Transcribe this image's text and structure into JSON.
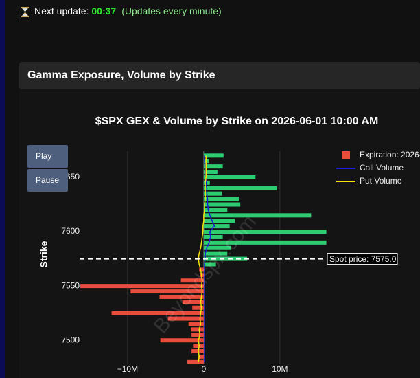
{
  "header": {
    "label": "Next update:",
    "countdown": "00:37",
    "note": "(Updates every minute)"
  },
  "panel": {
    "title": "Gamma Exposure, Volume by Strike"
  },
  "controls": {
    "play": "Play",
    "pause": "Pause"
  },
  "watermark": "Beyondspx.com",
  "chart_data": {
    "type": "bar",
    "orientation": "horizontal",
    "title": "$SPX GEX & Volume by Strike on 2026-06-01 10:00 AM",
    "y_label": "Strike",
    "y": [
      7480,
      7485,
      7490,
      7495,
      7500,
      7505,
      7510,
      7515,
      7520,
      7525,
      7530,
      7535,
      7540,
      7545,
      7550,
      7555,
      7560,
      7565,
      7570,
      7575,
      7580,
      7585,
      7590,
      7595,
      7600,
      7605,
      7610,
      7615,
      7620,
      7625,
      7630,
      7635,
      7640,
      7645,
      7650,
      7655,
      7660,
      7665,
      7670
    ],
    "series": [
      {
        "name": "Expiration: 2026-",
        "type": "bar",
        "color": "#e74c3c",
        "positive_color": "#2ecc71",
        "negative_color": "#e74c3c",
        "values": [
          -2200000,
          -800000,
          -1600000,
          -1400000,
          -5700000,
          -1600000,
          -1700000,
          -2000000,
          -4700000,
          -12100000,
          -1500000,
          -2800000,
          -5800000,
          -9600000,
          -16200000,
          -3000000,
          -500000,
          -600000,
          1600000,
          5700000,
          3100000,
          3600000,
          16100000,
          2500000,
          16100000,
          3400000,
          4100000,
          14100000,
          3100000,
          4800000,
          4600000,
          2400000,
          9600000,
          800000,
          6800000,
          1800000,
          2500000,
          700000,
          2600000
        ]
      },
      {
        "name": "Call Volume",
        "type": "line",
        "color": "#1a1adb",
        "values": [
          100000,
          100000,
          100000,
          100000,
          100000,
          100000,
          100000,
          100000,
          100000,
          100000,
          100000,
          100000,
          100000,
          100000,
          100000,
          100000,
          100000,
          100000,
          100000,
          200000,
          200000,
          400000,
          700000,
          900000,
          800000,
          1400000,
          1100000,
          800000,
          600000,
          500000,
          500000,
          400000,
          400000,
          300000,
          300000,
          200000,
          200000,
          100000,
          100000
        ]
      },
      {
        "name": "Put Volume",
        "type": "line",
        "color": "#f5e50a",
        "values": [
          -700000,
          -600000,
          -700000,
          -600000,
          -700000,
          -500000,
          -600000,
          -400000,
          -500000,
          -400000,
          -300000,
          -400000,
          -300000,
          -200000,
          -300000,
          -200000,
          -300000,
          -400000,
          -600000,
          -700000,
          -600000,
          -400000,
          -300000,
          -200000,
          -100000,
          -100000,
          0,
          0,
          100000,
          100000,
          200000,
          200000,
          200000,
          200000,
          300000,
          300000,
          300000,
          300000,
          300000
        ]
      }
    ],
    "xlim": [
      -16300000,
      16500000
    ],
    "xticks": [
      {
        "value": -10000000,
        "label": "−10M"
      },
      0,
      {
        "value": 10000000,
        "label": "10M"
      }
    ],
    "ylim": [
      7478,
      7674
    ],
    "yticks": [
      7500,
      7550,
      7600,
      7650
    ],
    "grid": true,
    "legend": "top-right",
    "annotations": [
      {
        "text": "Spot price: 7575.0",
        "y": 7575
      }
    ]
  }
}
